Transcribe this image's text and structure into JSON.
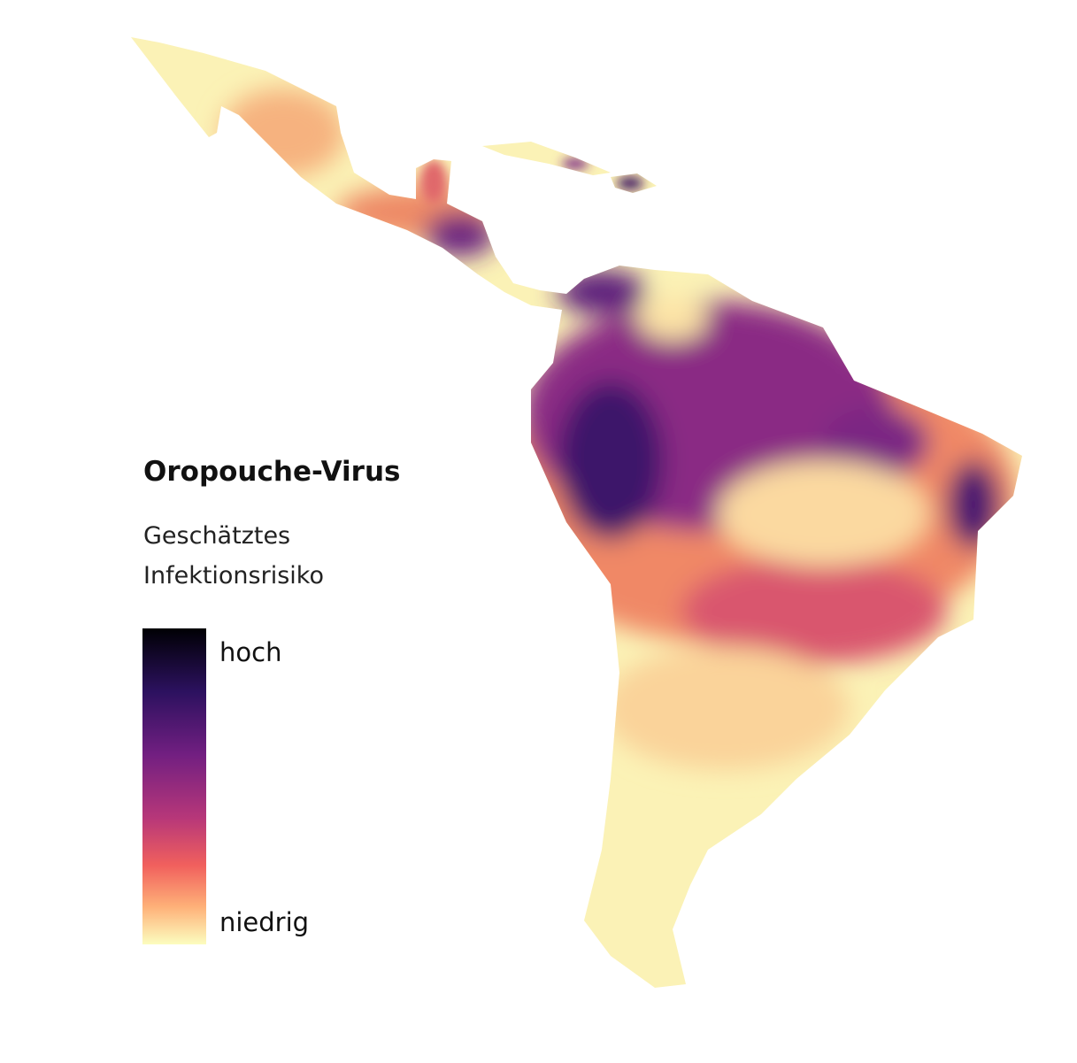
{
  "legend": {
    "title": "Oropouche-Virus",
    "subtitle": [
      "Geschätztes",
      "Infektionsrisiko"
    ],
    "high": "hoch",
    "low": "niedrig"
  }
}
